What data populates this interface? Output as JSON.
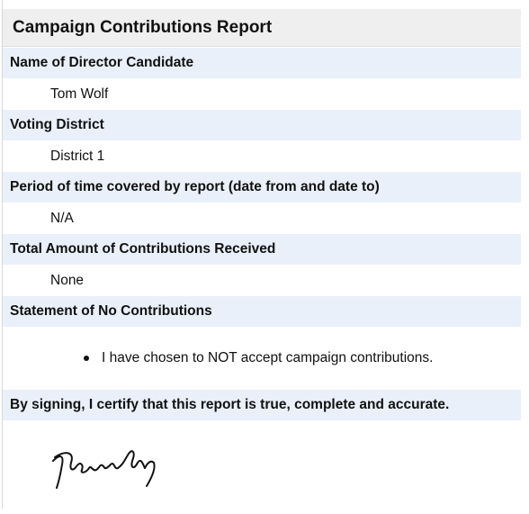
{
  "header": {
    "title": "Campaign Contributions Report"
  },
  "sections": [
    {
      "label": "Name of Director Candidate",
      "value": "Tom Wolf"
    },
    {
      "label": "Voting District",
      "value": "District 1"
    },
    {
      "label": "Period of time covered by report (date from and date to)",
      "value": "N/A"
    },
    {
      "label": "Total Amount of Contributions Received",
      "value": "None"
    }
  ],
  "statement": {
    "label": "Statement of No Contributions",
    "items": [
      "I have chosen to NOT accept campaign contributions."
    ]
  },
  "certification": {
    "label": "By signing, I certify that this report is true, complete and accurate."
  }
}
